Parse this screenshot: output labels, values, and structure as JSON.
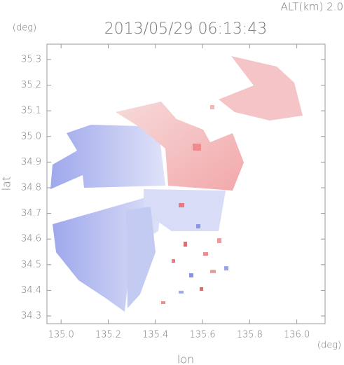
{
  "chart_data": {
    "type": "map",
    "title": "2013/05/29 06:13:43",
    "annotation": "ALT(km) 2.0",
    "y_unit": "(deg)",
    "x_unit": "(deg)",
    "xlabel": "lon",
    "ylabel": "lat",
    "xlim": [
      134.94,
      136.12
    ],
    "ylim": [
      34.27,
      35.36
    ],
    "xticks": [
      {
        "value": 135,
        "label": "135.0"
      },
      135.2,
      135.4,
      135.6,
      135.8,
      {
        "value": 136,
        "label": "136.0"
      }
    ],
    "yticks": [
      34.3,
      34.4,
      34.5,
      34.6,
      34.7,
      34.8,
      34.9,
      {
        "value": 35,
        "label": "35.0"
      },
      35.1,
      35.2,
      35.3
    ]
  }
}
